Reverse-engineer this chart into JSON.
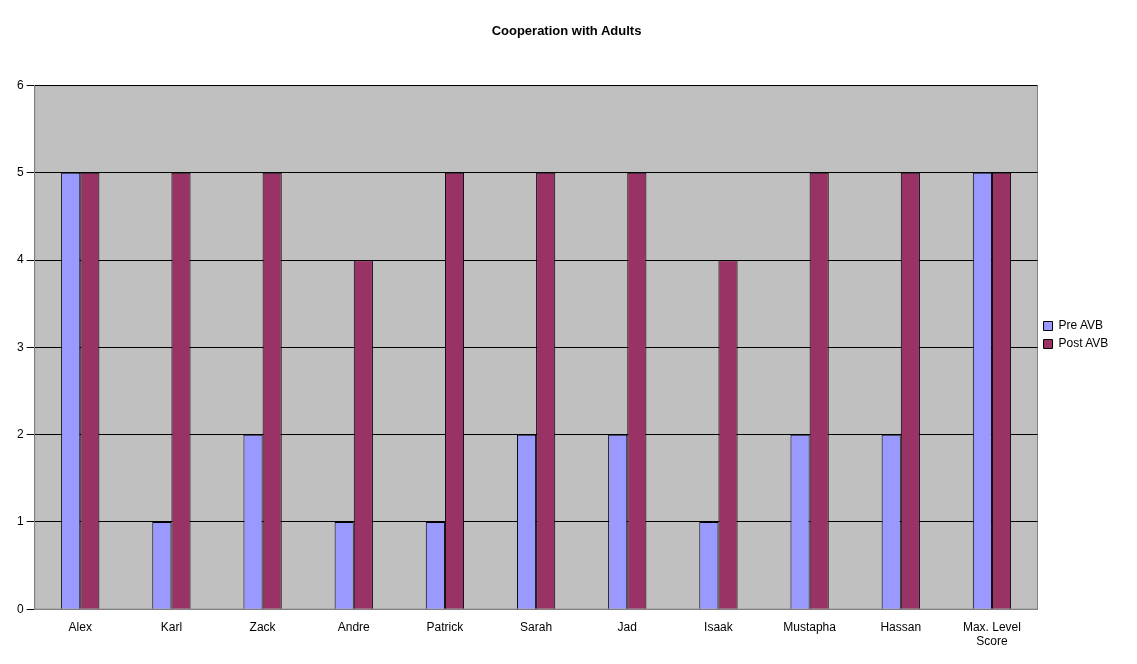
{
  "chart_data": {
    "type": "bar",
    "title": "Cooperation with Adults",
    "categories": [
      "Alex",
      "Karl",
      "Zack",
      "Andre",
      "Patrick",
      "Sarah",
      "Jad",
      "Isaak",
      "Mustapha",
      "Hassan",
      "Max. Level Score"
    ],
    "series": [
      {
        "name": "Pre AVB",
        "color": "#9999ff",
        "values": [
          5,
          1,
          2,
          1,
          1,
          2,
          2,
          1,
          2,
          2,
          5
        ]
      },
      {
        "name": "Post AVB",
        "color": "#993366",
        "values": [
          5,
          5,
          5,
          4,
          5,
          5,
          5,
          4,
          5,
          5,
          5
        ]
      }
    ],
    "ylim": [
      0,
      6
    ],
    "yticks": [
      0,
      1,
      2,
      3,
      4,
      5,
      6
    ],
    "grid": "y",
    "legend": "right"
  }
}
